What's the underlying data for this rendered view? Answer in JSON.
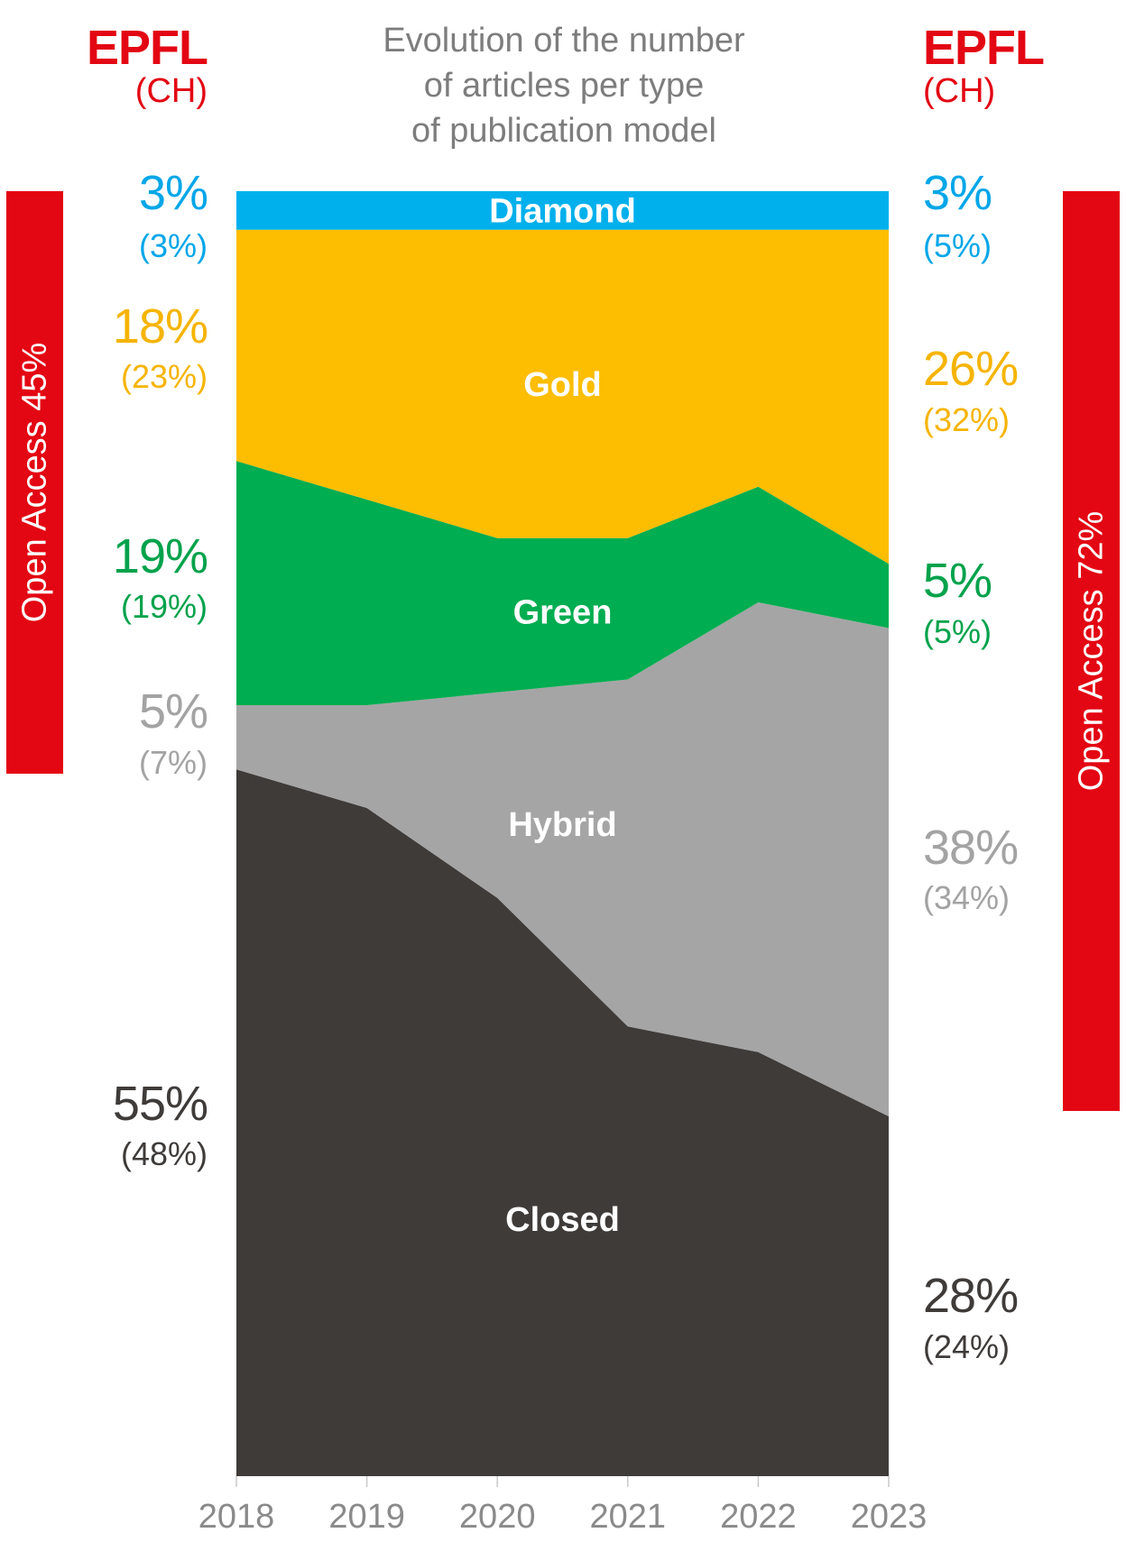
{
  "header": {
    "left_brand": "EPFL",
    "left_sub": "(CH)",
    "right_brand": "EPFL",
    "right_sub": "(CH)"
  },
  "chart_data": {
    "type": "area",
    "title": "Evolution of the number of articles per type of publication model",
    "title_lines": [
      "Evolution of the number",
      "of articles per type",
      "of publication model"
    ],
    "stacking": "100% stacked",
    "x": [
      "2018",
      "2019",
      "2020",
      "2021",
      "2022",
      "2023"
    ],
    "ylim": [
      0,
      100
    ],
    "series": [
      {
        "name": "Closed",
        "values": [
          55,
          52,
          45,
          35,
          33,
          28
        ],
        "color": "#3f3b39",
        "label_color": "#ffffff"
      },
      {
        "name": "Hybrid",
        "values": [
          5,
          8,
          16,
          27,
          35,
          38
        ],
        "color": "#a5a5a5",
        "label_color": "#ffffff"
      },
      {
        "name": "Green",
        "values": [
          19,
          16,
          12,
          11,
          9,
          5
        ],
        "color": "#00ad50",
        "label_color": "#ffffff"
      },
      {
        "name": "Gold",
        "values": [
          18,
          21,
          24,
          24,
          20,
          26
        ],
        "color": "#fdbd00",
        "label_color": "#ffffff"
      },
      {
        "name": "Diamond",
        "values": [
          3,
          3,
          3,
          3,
          3,
          3
        ],
        "color": "#00b0ec",
        "label_color": "#ffffff"
      }
    ],
    "left_labels": [
      {
        "series": "Diamond",
        "value": "3%",
        "ch": "(3%)",
        "color": "#00a6e8"
      },
      {
        "series": "Gold",
        "value": "18%",
        "ch": "(23%)",
        "color": "#f6b400"
      },
      {
        "series": "Green",
        "value": "19%",
        "ch": "(19%)",
        "color": "#00a24b"
      },
      {
        "series": "Hybrid",
        "value": "5%",
        "ch": "(7%)",
        "color": "#a3a3a3"
      },
      {
        "series": "Closed",
        "value": "55%",
        "ch": "(48%)",
        "color": "#3f3b39"
      }
    ],
    "right_labels": [
      {
        "series": "Diamond",
        "value": "3%",
        "ch": "(5%)",
        "color": "#00a6e8"
      },
      {
        "series": "Gold",
        "value": "26%",
        "ch": "(32%)",
        "color": "#f6b400"
      },
      {
        "series": "Green",
        "value": "5%",
        "ch": "(5%)",
        "color": "#00a24b"
      },
      {
        "series": "Hybrid",
        "value": "38%",
        "ch": "(34%)",
        "color": "#a3a3a3"
      },
      {
        "series": "Closed",
        "value": "28%",
        "ch": "(24%)",
        "color": "#3f3b39"
      }
    ],
    "open_access": {
      "left": "Open Access 45%",
      "right": "Open Access 72%",
      "color": "#e30613"
    }
  },
  "colors": {
    "brand_red": "#e30613",
    "axis_text": "#8a8a8a",
    "title_text": "#7d7d7d"
  }
}
